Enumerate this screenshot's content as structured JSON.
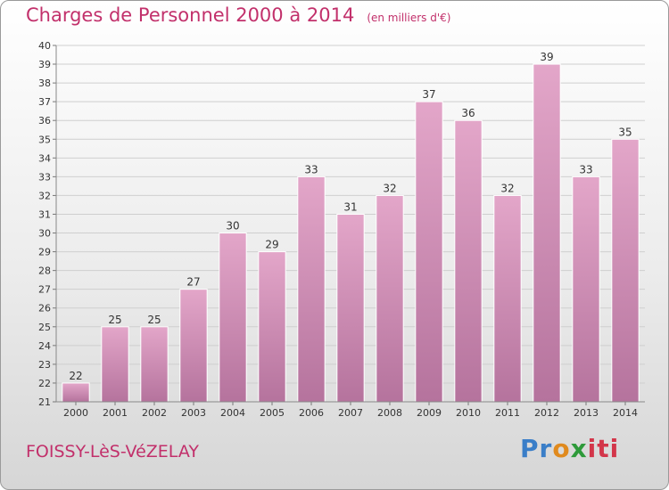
{
  "chart_data": {
    "type": "bar",
    "title": "Charges de Personnel 2000 à 2014",
    "subtitle": "(en milliers d'€)",
    "categories": [
      "2000",
      "2001",
      "2002",
      "2003",
      "2004",
      "2005",
      "2006",
      "2007",
      "2008",
      "2009",
      "2010",
      "2011",
      "2012",
      "2013",
      "2014"
    ],
    "values": [
      22,
      25,
      25,
      27,
      30,
      29,
      33,
      31,
      32,
      37,
      36,
      32,
      39,
      33,
      35
    ],
    "ylim": [
      21,
      40
    ],
    "yticks": [
      21,
      22,
      23,
      24,
      25,
      26,
      27,
      28,
      29,
      30,
      31,
      32,
      33,
      34,
      35,
      36,
      37,
      38,
      39,
      40
    ],
    "grid": true,
    "bar_color": "#d98fb9",
    "title_color": "#c2306b"
  },
  "footer": {
    "commune": "FOISSY-LèS-VéZELAY",
    "logo_parts": [
      "Pr",
      "o",
      "x",
      "iti"
    ]
  }
}
